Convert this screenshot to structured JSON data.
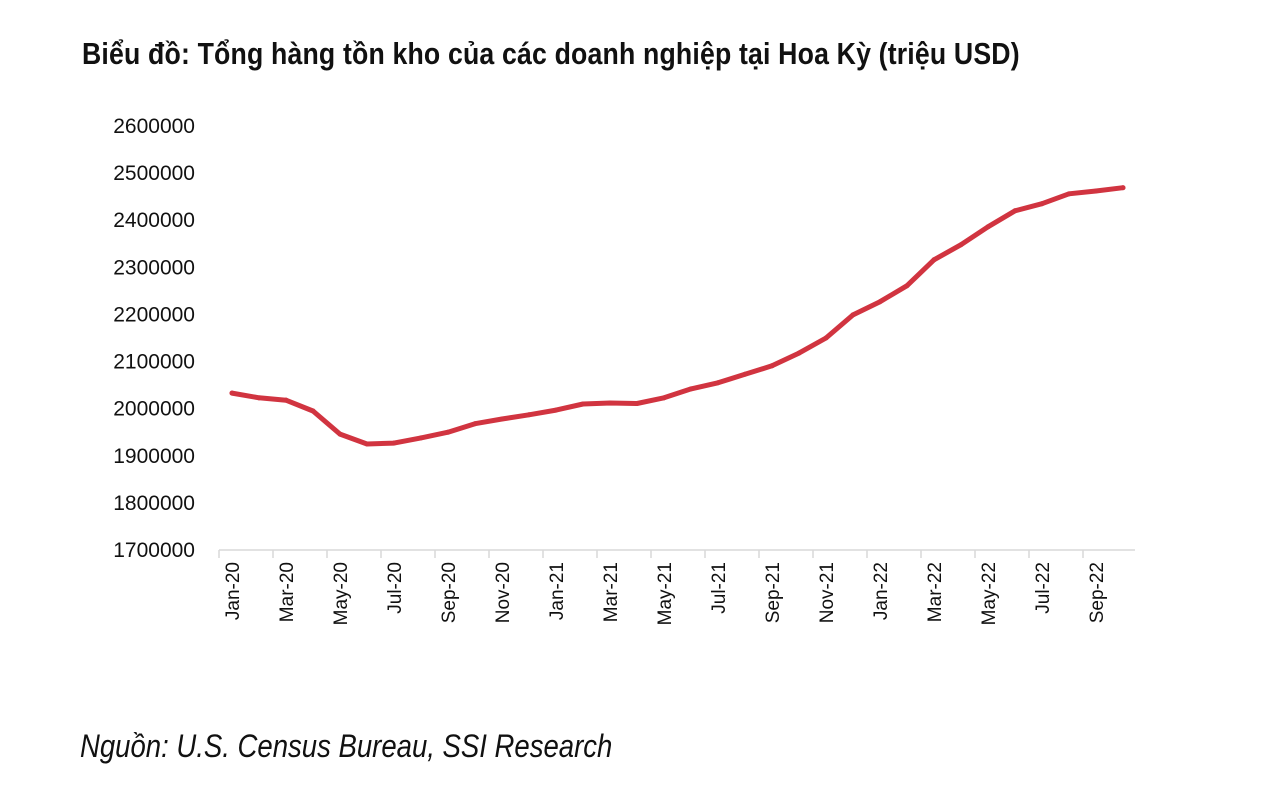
{
  "chart_data": {
    "type": "line",
    "title": "Biểu đồ: Tổng hàng tồn kho của các doanh nghiệp tại Hoa Kỳ (triệu USD)",
    "source": "Nguồn: U.S. Census Bureau, SSI Research",
    "xlabel": "",
    "ylabel": "",
    "ylim": [
      1700000,
      2600000
    ],
    "yticks": [
      "1700000",
      "1800000",
      "1900000",
      "2000000",
      "2100000",
      "2200000",
      "2300000",
      "2400000",
      "2500000",
      "2600000"
    ],
    "xtick_labels": [
      "Jan-20",
      "Mar-20",
      "May-20",
      "Jul-20",
      "Sep-20",
      "Nov-20",
      "Jan-21",
      "Mar-21",
      "May-21",
      "Jul-21",
      "Sep-21",
      "Nov-21",
      "Jan-22",
      "Mar-22",
      "May-22",
      "Jul-22",
      "Sep-22"
    ],
    "x": [
      "Jan-20",
      "Feb-20",
      "Mar-20",
      "Apr-20",
      "May-20",
      "Jun-20",
      "Jul-20",
      "Aug-20",
      "Sep-20",
      "Oct-20",
      "Nov-20",
      "Dec-20",
      "Jan-21",
      "Feb-21",
      "Mar-21",
      "Apr-21",
      "May-21",
      "Jun-21",
      "Jul-21",
      "Aug-21",
      "Sep-21",
      "Oct-21",
      "Nov-21",
      "Dec-21",
      "Jan-22",
      "Feb-22",
      "Mar-22",
      "Apr-22",
      "May-22",
      "Jun-22",
      "Jul-22",
      "Aug-22",
      "Sep-22",
      "Oct-22"
    ],
    "series": [
      {
        "name": "Tổng hàng tồn kho",
        "color": "#d13440",
        "values": [
          2033000,
          2023000,
          2018000,
          1995000,
          1946000,
          1925000,
          1927000,
          1938000,
          1950000,
          1968000,
          1978000,
          1987000,
          1997000,
          2010000,
          2012000,
          2011000,
          2023000,
          2042000,
          2055000,
          2073000,
          2091000,
          2118000,
          2150000,
          2199000,
          2227000,
          2261000,
          2316000,
          2348000,
          2386000,
          2420000,
          2435000,
          2456000,
          2462000,
          2469000
        ]
      }
    ],
    "grid": false,
    "legend": "none"
  }
}
